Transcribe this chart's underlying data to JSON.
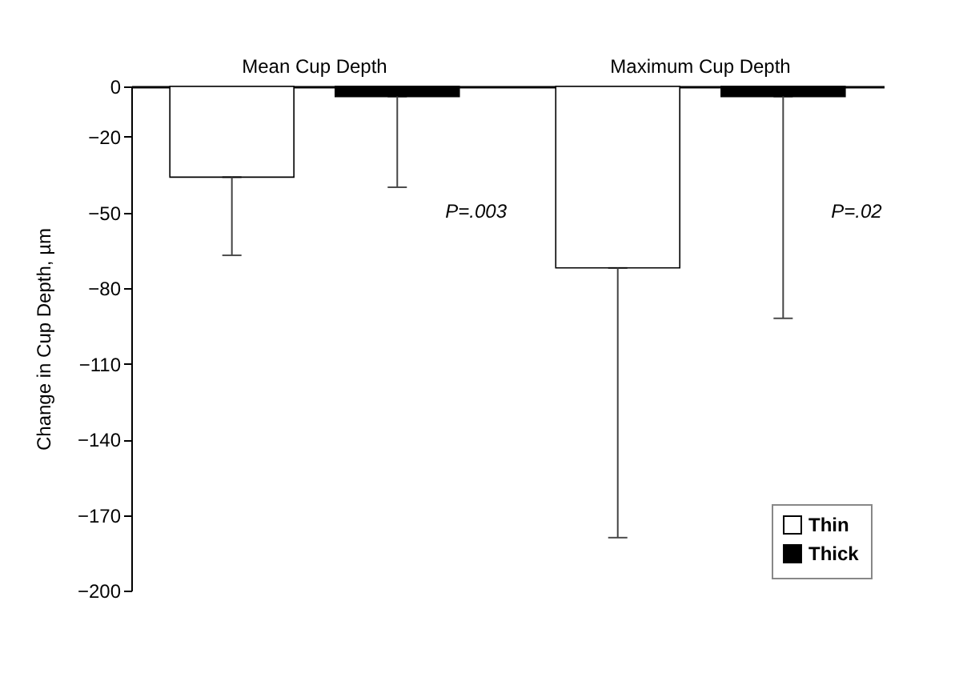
{
  "chart_data": {
    "type": "bar",
    "ylabel": "Change in Cup Depth, µm",
    "categories": [
      "Mean Cup Depth",
      "Maximum Cup Depth"
    ],
    "series": [
      {
        "name": "Thin",
        "color": "#ffffff",
        "values": [
          -36,
          -72
        ],
        "errors": [
          [
            -67,
            -36
          ],
          [
            -179,
            -72
          ]
        ]
      },
      {
        "name": "Thick",
        "color": "#000000",
        "values": [
          -4,
          -4
        ],
        "errors": [
          [
            -40,
            -4
          ],
          [
            -92,
            -4
          ]
        ]
      }
    ],
    "ylim": [
      -200,
      0
    ],
    "yticks": [
      0,
      -20,
      -50,
      -80,
      -110,
      -140,
      -170,
      -200
    ],
    "annotations": [
      "P=.003",
      "P=.02"
    ],
    "grid": false,
    "legend": "bottom right"
  }
}
